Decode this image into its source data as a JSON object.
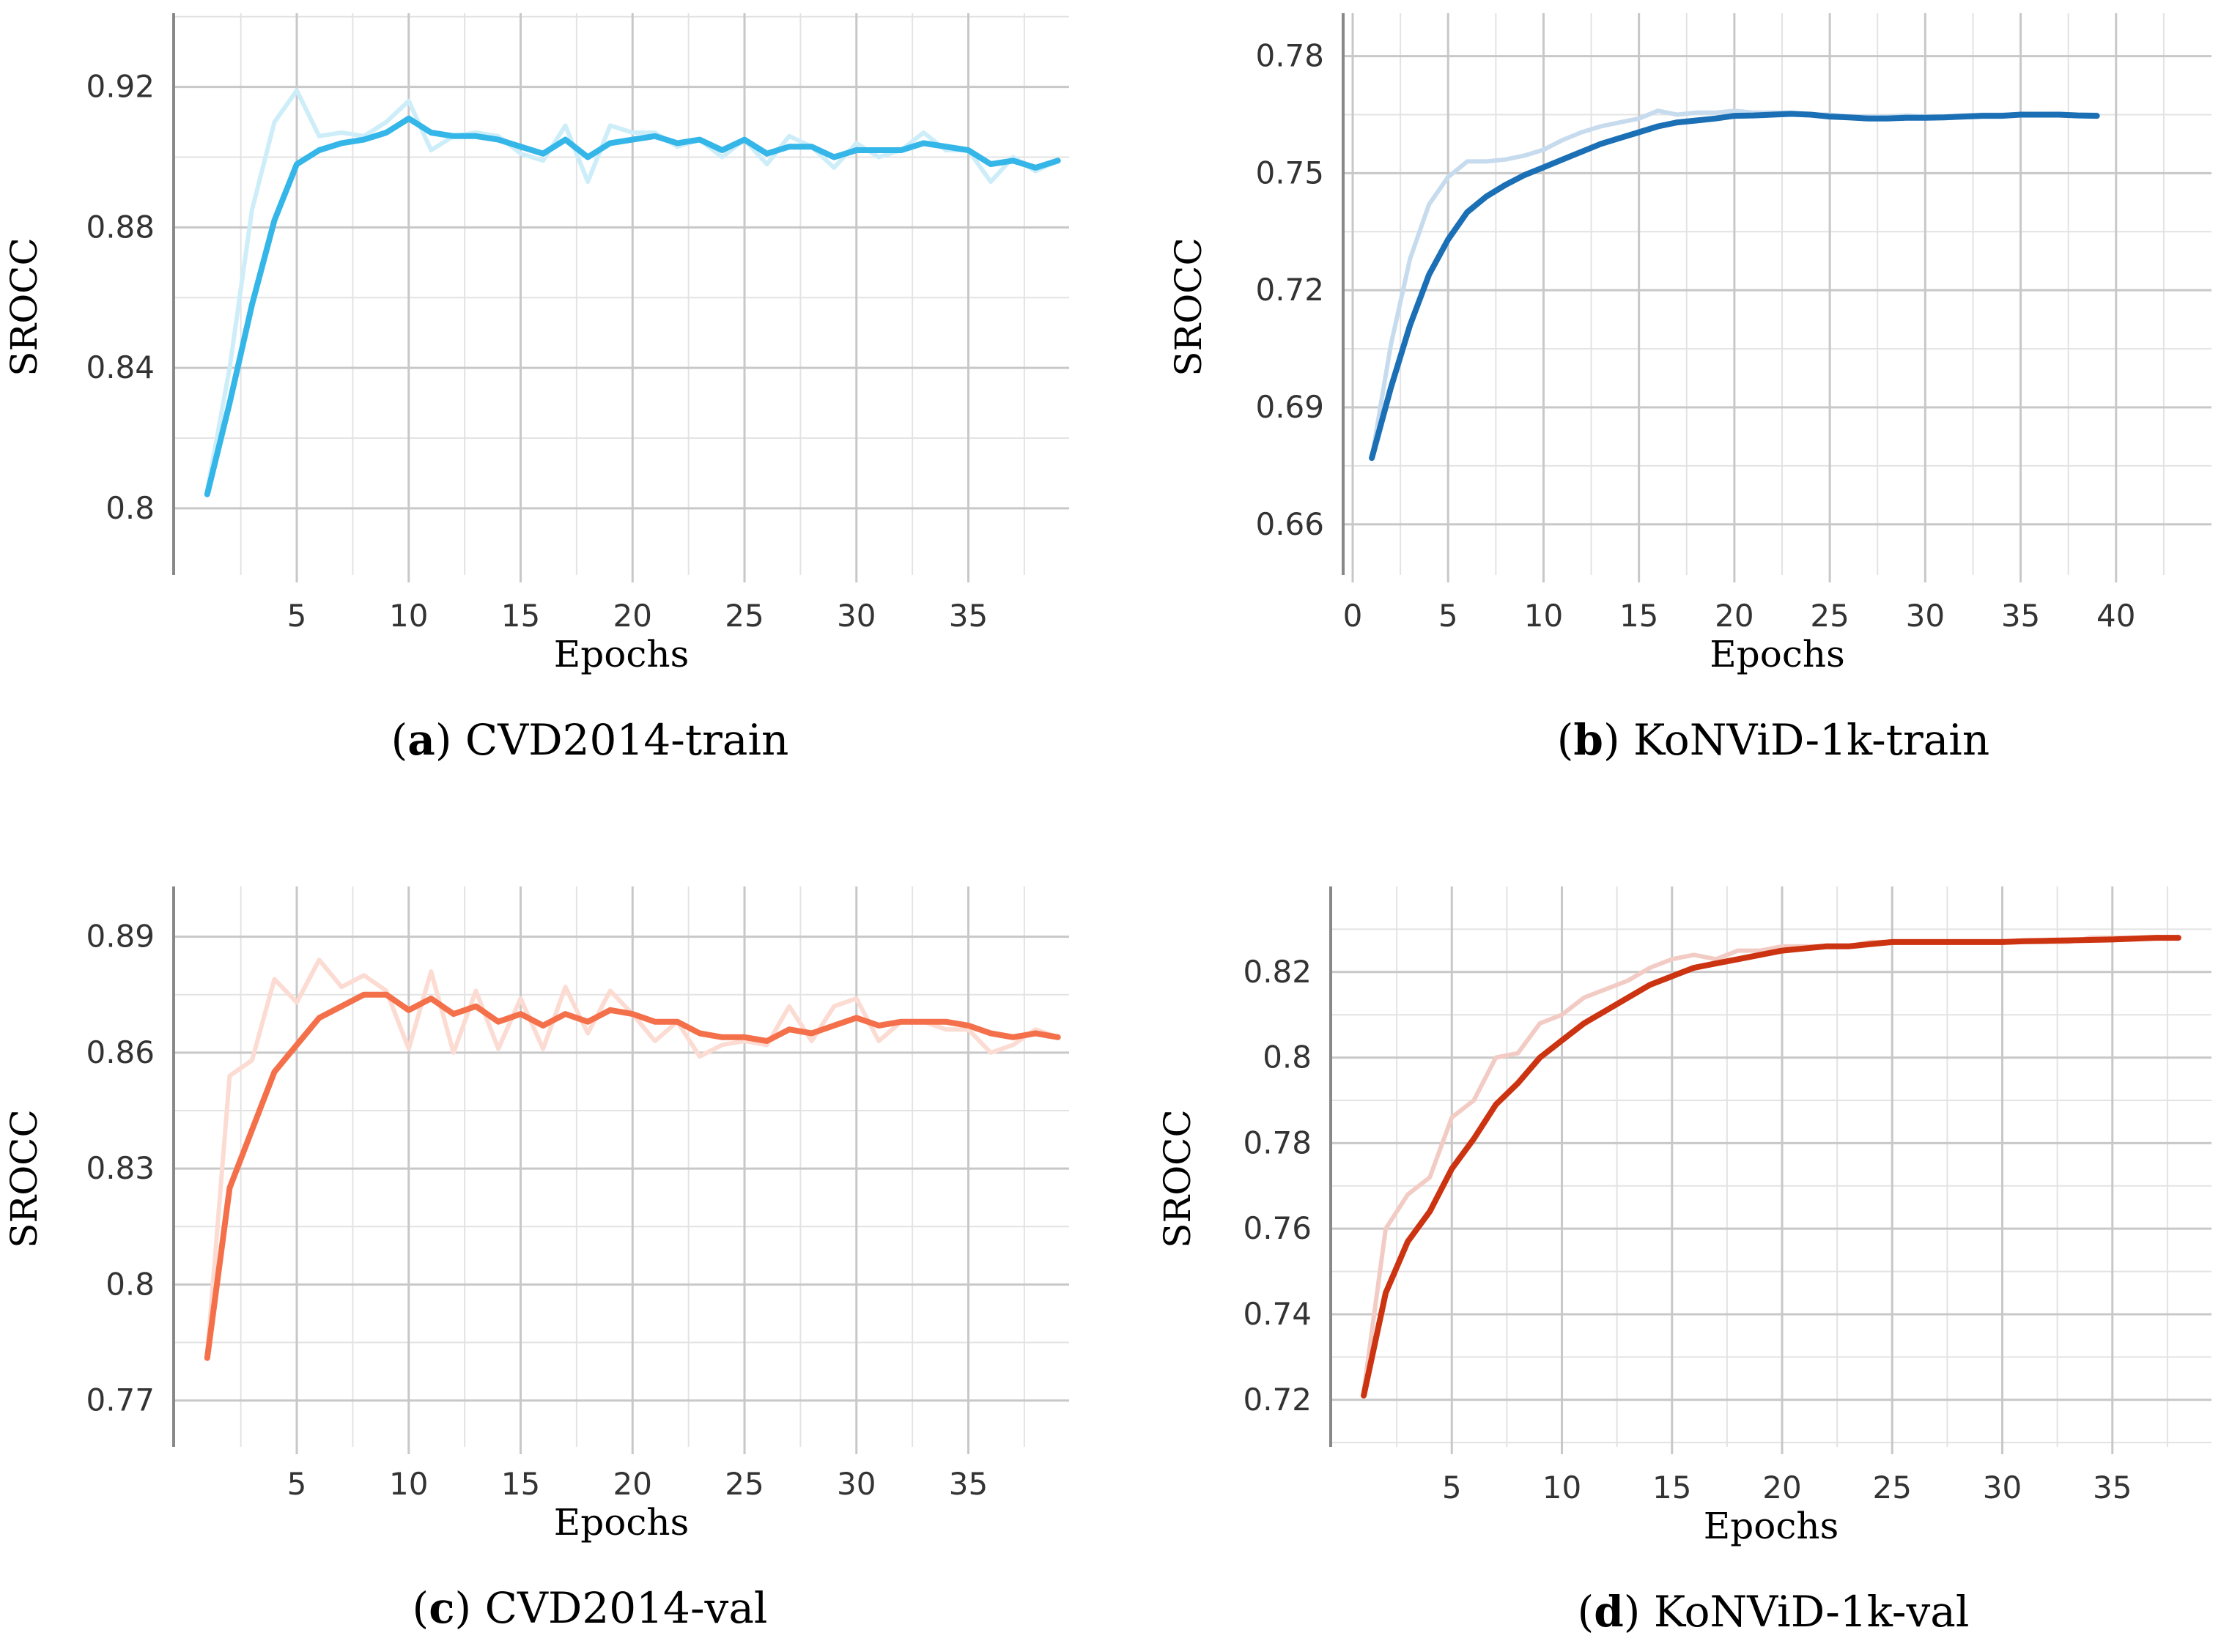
{
  "chart_data": [
    {
      "type": "line",
      "tag": "a",
      "caption_text": "CVD2014-train",
      "xlabel": "Epochs",
      "ylabel": "SROCC",
      "xlim": [
        -0.5,
        39.5
      ],
      "ylim": [
        0.781,
        0.941
      ],
      "xticks": [
        5,
        10,
        15,
        20,
        25,
        30,
        35
      ],
      "yticks": [
        0.8,
        0.84,
        0.88,
        0.92
      ],
      "ytick_labels": [
        "0.8",
        "0.84",
        "0.88",
        "0.92"
      ],
      "grid": true,
      "color": "#35b6e8",
      "x": [
        1,
        2,
        3,
        4,
        5,
        6,
        7,
        8,
        9,
        10,
        11,
        12,
        13,
        14,
        15,
        16,
        17,
        18,
        19,
        20,
        21,
        22,
        23,
        24,
        25,
        26,
        27,
        28,
        29,
        30,
        31,
        32,
        33,
        34,
        35,
        36,
        37,
        38,
        39
      ],
      "series": [
        {
          "name": "raw",
          "values": [
            0.805,
            0.84,
            0.885,
            0.91,
            0.919,
            0.906,
            0.907,
            0.906,
            0.91,
            0.916,
            0.902,
            0.906,
            0.907,
            0.906,
            0.901,
            0.899,
            0.909,
            0.893,
            0.909,
            0.907,
            0.907,
            0.903,
            0.905,
            0.9,
            0.905,
            0.898,
            0.906,
            0.903,
            0.897,
            0.904,
            0.9,
            0.902,
            0.907,
            0.902,
            0.902,
            0.893,
            0.9,
            0.896,
            0.899
          ]
        },
        {
          "name": "smoothed",
          "values": [
            0.804,
            0.83,
            0.858,
            0.882,
            0.898,
            0.902,
            0.904,
            0.905,
            0.907,
            0.911,
            0.907,
            0.906,
            0.906,
            0.905,
            0.903,
            0.901,
            0.905,
            0.9,
            0.904,
            0.905,
            0.906,
            0.904,
            0.905,
            0.902,
            0.905,
            0.901,
            0.903,
            0.903,
            0.9,
            0.902,
            0.902,
            0.902,
            0.904,
            0.903,
            0.902,
            0.898,
            0.899,
            0.897,
            0.899
          ]
        }
      ]
    },
    {
      "type": "line",
      "tag": "b",
      "caption_text": "KoNViD-1k-train",
      "xlabel": "Epochs",
      "ylabel": "SROCC",
      "xlim": [
        -0.5,
        45.0
      ],
      "ylim": [
        0.647,
        0.791
      ],
      "xticks": [
        0,
        5,
        10,
        15,
        20,
        25,
        30,
        35,
        40
      ],
      "yticks": [
        0.66,
        0.69,
        0.72,
        0.75,
        0.78
      ],
      "ytick_labels": [
        "0.66",
        "0.69",
        "0.72",
        "0.75",
        "0.78"
      ],
      "grid": true,
      "color": "#1b6fb5",
      "x": [
        1,
        2,
        3,
        4,
        5,
        6,
        7,
        8,
        9,
        10,
        11,
        12,
        13,
        14,
        15,
        16,
        17,
        18,
        19,
        20,
        21,
        22,
        23,
        24,
        25,
        26,
        27,
        28,
        29,
        30,
        31,
        32,
        33,
        34,
        35,
        36,
        37,
        38,
        39
      ],
      "series": [
        {
          "name": "raw",
          "values": [
            0.677,
            0.706,
            0.728,
            0.742,
            0.749,
            0.753,
            0.753,
            0.7535,
            0.7545,
            0.756,
            0.7585,
            0.7605,
            0.762,
            0.763,
            0.764,
            0.766,
            0.765,
            0.7655,
            0.7655,
            0.766,
            0.7655,
            0.7655,
            0.7655,
            0.765,
            0.765,
            0.7645,
            0.7645,
            0.7645,
            0.7648,
            0.7645,
            0.7645,
            0.7648,
            0.765,
            0.765,
            0.765,
            0.765,
            0.7652,
            0.765,
            0.765
          ]
        },
        {
          "name": "smoothed",
          "values": [
            0.677,
            0.695,
            0.711,
            0.724,
            0.733,
            0.74,
            0.744,
            0.747,
            0.7495,
            0.7515,
            0.7535,
            0.7555,
            0.7575,
            0.759,
            0.7605,
            0.762,
            0.763,
            0.7635,
            0.764,
            0.7647,
            0.7648,
            0.765,
            0.7652,
            0.765,
            0.7645,
            0.7643,
            0.764,
            0.764,
            0.7642,
            0.7642,
            0.7643,
            0.7645,
            0.7647,
            0.7647,
            0.765,
            0.765,
            0.765,
            0.7648,
            0.7647
          ]
        }
      ]
    },
    {
      "type": "line",
      "tag": "c",
      "caption_text": "CVD2014-val",
      "xlabel": "Epochs",
      "ylabel": "SROCC",
      "xlim": [
        -0.5,
        39.5
      ],
      "ylim": [
        0.758,
        0.903
      ],
      "xticks": [
        5,
        10,
        15,
        20,
        25,
        30,
        35
      ],
      "yticks": [
        0.77,
        0.8,
        0.83,
        0.86,
        0.89
      ],
      "ytick_labels": [
        "0.77",
        "0.8",
        "0.83",
        "0.86",
        "0.89"
      ],
      "grid": true,
      "color": "#f4704a",
      "x": [
        1,
        2,
        3,
        4,
        5,
        6,
        7,
        8,
        9,
        10,
        11,
        12,
        13,
        14,
        15,
        16,
        17,
        18,
        19,
        20,
        21,
        22,
        23,
        24,
        25,
        26,
        27,
        28,
        29,
        30,
        31,
        32,
        33,
        34,
        35,
        36,
        37,
        38,
        39
      ],
      "series": [
        {
          "name": "raw",
          "values": [
            0.782,
            0.854,
            0.858,
            0.879,
            0.873,
            0.884,
            0.877,
            0.88,
            0.876,
            0.861,
            0.881,
            0.86,
            0.876,
            0.861,
            0.874,
            0.861,
            0.877,
            0.865,
            0.876,
            0.87,
            0.863,
            0.868,
            0.859,
            0.862,
            0.863,
            0.862,
            0.872,
            0.863,
            0.872,
            0.874,
            0.863,
            0.868,
            0.868,
            0.866,
            0.866,
            0.86,
            0.862,
            0.866,
            0.864
          ]
        },
        {
          "name": "smoothed",
          "values": [
            0.781,
            0.825,
            0.84,
            0.855,
            0.862,
            0.869,
            0.872,
            0.875,
            0.875,
            0.871,
            0.874,
            0.87,
            0.872,
            0.868,
            0.87,
            0.867,
            0.87,
            0.868,
            0.871,
            0.87,
            0.868,
            0.868,
            0.865,
            0.864,
            0.864,
            0.863,
            0.866,
            0.865,
            0.867,
            0.869,
            0.867,
            0.868,
            0.868,
            0.868,
            0.867,
            0.865,
            0.864,
            0.865,
            0.864
          ]
        }
      ]
    },
    {
      "type": "line",
      "tag": "d",
      "caption_text": "KoNViD-1k-val",
      "xlabel": "Epochs",
      "ylabel": "SROCC",
      "xlim": [
        -0.5,
        39.5
      ],
      "ylim": [
        0.709,
        0.84
      ],
      "xticks": [
        5,
        10,
        15,
        20,
        25,
        30,
        35
      ],
      "yticks": [
        0.72,
        0.74,
        0.76,
        0.78,
        0.8,
        0.82
      ],
      "ytick_labels": [
        "0.72",
        "0.74",
        "0.76",
        "0.78",
        "0.8",
        "0.82"
      ],
      "grid": true,
      "color": "#cc3311",
      "x": [
        1,
        2,
        3,
        4,
        5,
        6,
        7,
        8,
        9,
        10,
        11,
        12,
        13,
        14,
        15,
        16,
        17,
        18,
        19,
        20,
        21,
        22,
        23,
        24,
        25,
        26,
        27,
        28,
        29,
        30,
        31,
        32,
        33,
        34,
        35,
        36,
        37,
        38
      ],
      "series": [
        {
          "name": "raw",
          "values": [
            0.722,
            0.76,
            0.768,
            0.772,
            0.786,
            0.79,
            0.8,
            0.801,
            0.808,
            0.81,
            0.814,
            0.816,
            0.818,
            0.821,
            0.823,
            0.824,
            0.823,
            0.825,
            0.825,
            0.826,
            0.826,
            0.826,
            0.826,
            0.827,
            0.827,
            0.827,
            0.827,
            0.827,
            0.827,
            0.827,
            0.827,
            0.827,
            0.827,
            0.828,
            0.828,
            0.828,
            0.828,
            0.828
          ]
        },
        {
          "name": "smoothed",
          "values": [
            0.721,
            0.745,
            0.757,
            0.764,
            0.774,
            0.781,
            0.789,
            0.794,
            0.8,
            0.804,
            0.808,
            0.811,
            0.814,
            0.817,
            0.819,
            0.821,
            0.822,
            0.823,
            0.824,
            0.825,
            0.8255,
            0.826,
            0.826,
            0.8265,
            0.827,
            0.827,
            0.827,
            0.827,
            0.827,
            0.827,
            0.8272,
            0.8273,
            0.8274,
            0.8275,
            0.8276,
            0.8278,
            0.828,
            0.828
          ]
        }
      ]
    }
  ]
}
